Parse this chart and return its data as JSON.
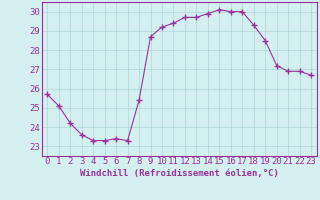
{
  "x": [
    0,
    1,
    2,
    3,
    4,
    5,
    6,
    7,
    8,
    9,
    10,
    11,
    12,
    13,
    14,
    15,
    16,
    17,
    18,
    19,
    20,
    21,
    22,
    23
  ],
  "y": [
    25.7,
    25.1,
    24.2,
    23.6,
    23.3,
    23.3,
    23.4,
    23.3,
    25.4,
    28.7,
    29.2,
    29.4,
    29.7,
    29.7,
    29.9,
    30.1,
    30.0,
    30.0,
    29.3,
    28.5,
    27.2,
    26.9,
    26.9,
    26.7
  ],
  "line_color": "#993399",
  "marker": "+",
  "marker_size": 4,
  "marker_edge_width": 1.0,
  "line_width": 0.8,
  "bg_color": "#d4efef",
  "grid_color": "#b0d8d8",
  "xlabel": "Windchill (Refroidissement éolien,°C)",
  "xlim": [
    -0.5,
    23.5
  ],
  "ylim": [
    22.5,
    30.5
  ],
  "yticks": [
    23,
    24,
    25,
    26,
    27,
    28,
    29,
    30
  ],
  "xticks": [
    0,
    1,
    2,
    3,
    4,
    5,
    6,
    7,
    8,
    9,
    10,
    11,
    12,
    13,
    14,
    15,
    16,
    17,
    18,
    19,
    20,
    21,
    22,
    23
  ],
  "xlabel_fontsize": 6.5,
  "tick_fontsize": 6.5,
  "label_color": "#993399",
  "spine_color": "#993399"
}
